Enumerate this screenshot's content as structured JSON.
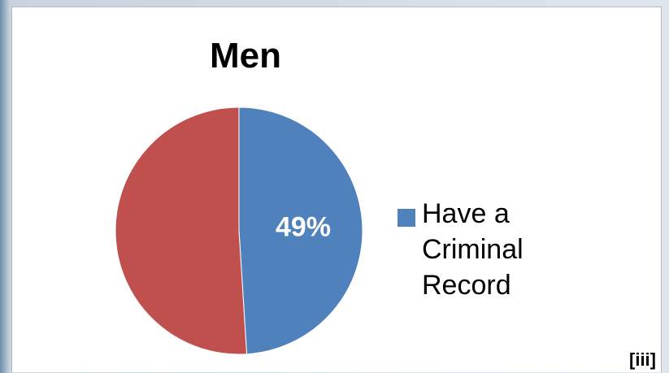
{
  "chart_data": {
    "type": "pie",
    "title": "Men",
    "slices": [
      {
        "label": "Have a Criminal Record",
        "value": 49,
        "data_label": "49%",
        "color": "#4f81bd"
      },
      {
        "label": "",
        "value": 51,
        "data_label": "",
        "color": "#c0504d"
      }
    ],
    "legend": {
      "entries": [
        "Have a\nCriminal\nRecord"
      ],
      "position": "right"
    }
  },
  "footnote": "[iii]"
}
